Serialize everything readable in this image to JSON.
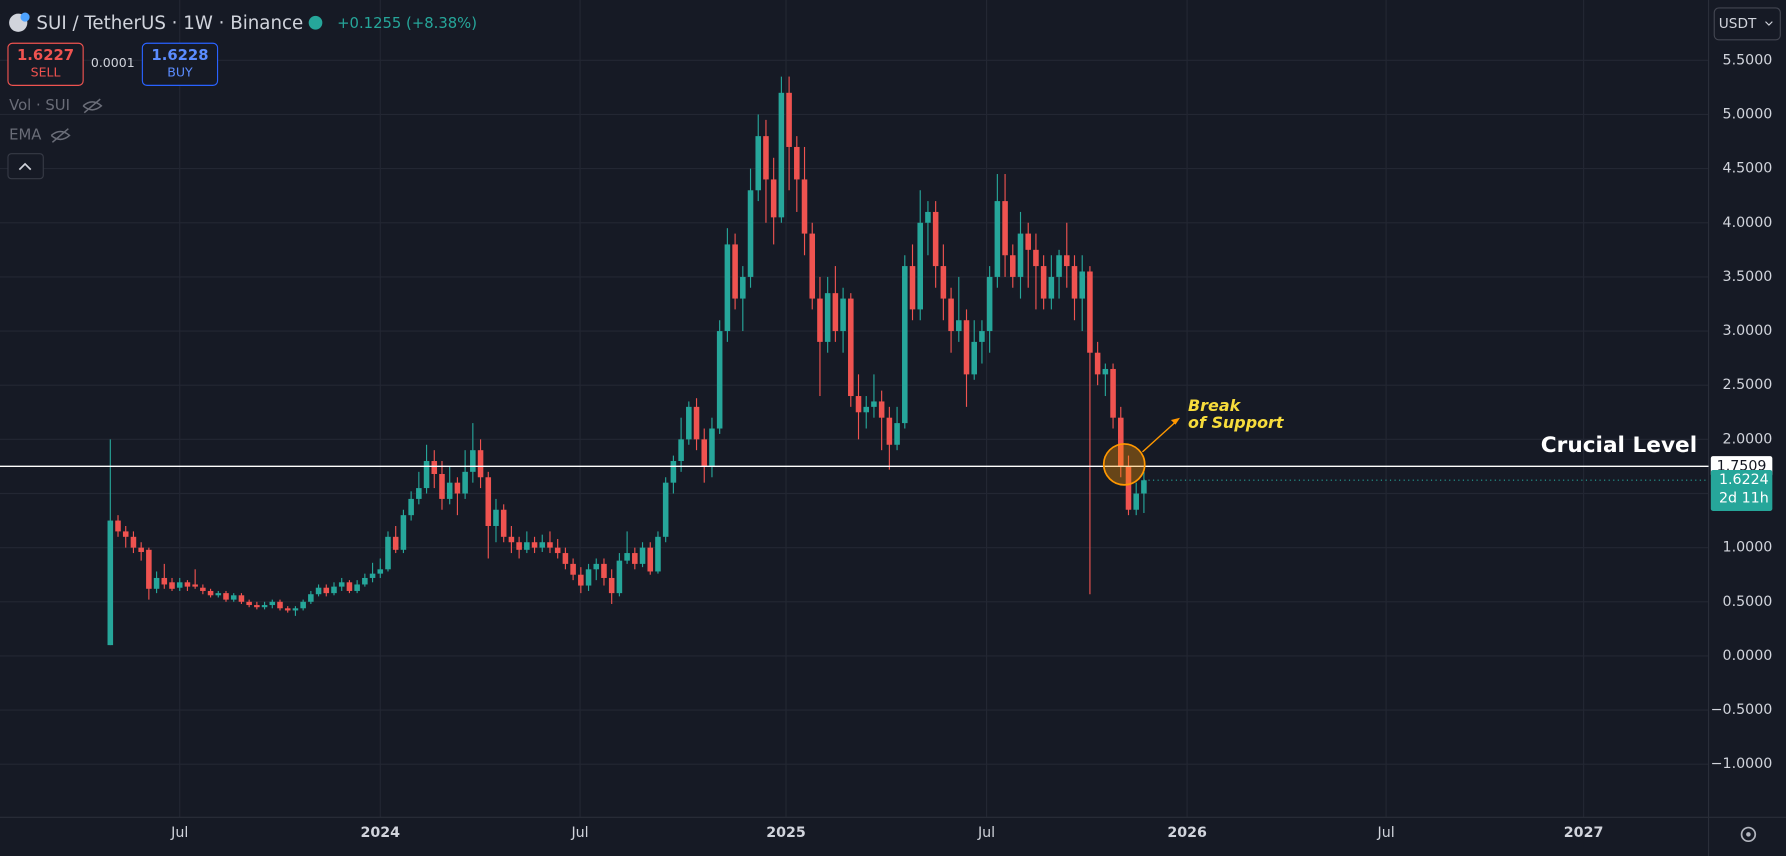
{
  "header": {
    "change": "+0.1255 (+8.38%)",
    "sell_price": "1.6227",
    "sell_label": "SELL",
    "spread": "0.0001",
    "buy_price": "1.6228",
    "buy_label": "BUY",
    "indicators": [
      "Vol · SUI",
      "EMA"
    ],
    "currency": "USDT"
  },
  "chart_data": {
    "type": "candlestick",
    "title": "SUI / TetherUS · 1W · Binance",
    "up_color": "#26a69a",
    "down_color": "#ef5350",
    "grid": true,
    "x": [
      0,
      1,
      2,
      3,
      4,
      5,
      6,
      7,
      8,
      9,
      10,
      11,
      12,
      13,
      14,
      15,
      16,
      17,
      18,
      19,
      20,
      21,
      22,
      23,
      24,
      25,
      26,
      27,
      28,
      29,
      30,
      31,
      32,
      33,
      34,
      35,
      36,
      37,
      38,
      39,
      40,
      41,
      42,
      43,
      44,
      45,
      46,
      47,
      48,
      49,
      50,
      51,
      52,
      53,
      54,
      55,
      56,
      57,
      58,
      59,
      60,
      61,
      62,
      63,
      64,
      65,
      66,
      67,
      68,
      69,
      70,
      71,
      72,
      73,
      74,
      75,
      76,
      77,
      78,
      79,
      80,
      81,
      82,
      83,
      84,
      85,
      86,
      87,
      88,
      89,
      90,
      91,
      92,
      93,
      94,
      95,
      96,
      97,
      98,
      99,
      100,
      101,
      102,
      103,
      104,
      105,
      106,
      107,
      108,
      109,
      110,
      111,
      112,
      113,
      114,
      115,
      116,
      117,
      118,
      119,
      120,
      121,
      122,
      123,
      124,
      125,
      126,
      127,
      128,
      129,
      130,
      131,
      132,
      133,
      134
    ],
    "open": [
      0.1,
      1.25,
      1.15,
      1.1,
      1.0,
      0.98,
      0.62,
      0.72,
      0.68,
      0.63,
      0.68,
      0.66,
      0.63,
      0.6,
      0.56,
      0.58,
      0.52,
      0.56,
      0.5,
      0.47,
      0.45,
      0.47,
      0.5,
      0.44,
      0.42,
      0.44,
      0.5,
      0.57,
      0.63,
      0.58,
      0.64,
      0.68,
      0.6,
      0.66,
      0.72,
      0.76,
      0.8,
      1.1,
      0.98,
      1.3,
      1.45,
      1.55,
      1.8,
      1.68,
      1.45,
      1.6,
      1.5,
      1.7,
      1.9,
      1.65,
      1.2,
      1.35,
      1.1,
      1.05,
      0.98,
      1.05,
      1.0,
      1.05,
      1.0,
      0.95,
      0.85,
      0.75,
      0.65,
      0.8,
      0.85,
      0.72,
      0.58,
      0.88,
      0.95,
      0.85,
      1.0,
      0.78,
      1.1,
      1.6,
      1.8,
      2.0,
      2.3,
      2.0,
      1.75,
      2.1,
      3.0,
      3.8,
      3.3,
      3.5,
      4.3,
      4.8,
      4.4,
      4.05,
      5.2,
      4.7,
      4.4,
      3.9,
      3.3,
      2.9,
      3.35,
      3.0,
      3.3,
      2.4,
      2.25,
      2.3,
      2.35,
      2.2,
      1.95,
      2.15,
      3.6,
      3.2,
      4.0,
      4.1,
      3.6,
      3.3,
      3.0,
      3.1,
      2.6,
      2.9,
      3.0,
      3.5,
      4.2,
      3.7,
      3.5,
      3.9,
      3.75,
      3.6,
      3.3,
      3.5,
      3.7,
      3.6,
      3.3,
      3.55,
      2.8,
      2.6,
      2.65,
      2.2,
      1.75,
      1.35,
      1.5
    ],
    "high": [
      2.0,
      1.3,
      1.2,
      1.15,
      1.05,
      1.0,
      0.78,
      0.85,
      0.72,
      0.72,
      0.7,
      0.8,
      0.66,
      0.62,
      0.6,
      0.6,
      0.58,
      0.58,
      0.52,
      0.5,
      0.5,
      0.52,
      0.52,
      0.46,
      0.46,
      0.52,
      0.6,
      0.66,
      0.66,
      0.68,
      0.72,
      0.7,
      0.7,
      0.76,
      0.86,
      0.9,
      1.15,
      1.2,
      1.35,
      1.52,
      1.7,
      1.95,
      1.9,
      1.8,
      1.75,
      1.65,
      1.9,
      2.15,
      2.0,
      1.7,
      1.45,
      1.4,
      1.2,
      1.1,
      1.15,
      1.1,
      1.12,
      1.15,
      1.08,
      1.0,
      0.9,
      0.82,
      0.85,
      0.9,
      0.9,
      0.8,
      0.95,
      1.15,
      1.0,
      1.05,
      1.05,
      1.15,
      1.65,
      1.85,
      2.2,
      2.35,
      2.38,
      2.1,
      2.2,
      3.1,
      3.95,
      3.9,
      3.6,
      4.5,
      5.0,
      4.95,
      4.6,
      5.35,
      5.35,
      4.8,
      4.7,
      4.0,
      3.5,
      3.5,
      3.6,
      3.4,
      3.35,
      2.6,
      2.4,
      2.6,
      2.45,
      2.3,
      2.3,
      3.7,
      3.8,
      4.3,
      4.2,
      4.2,
      3.8,
      3.4,
      3.5,
      3.2,
      3.1,
      3.1,
      3.6,
      4.45,
      4.45,
      3.8,
      4.1,
      4.0,
      3.9,
      3.7,
      3.7,
      3.75,
      4.0,
      3.7,
      3.7,
      3.6,
      2.9,
      2.7,
      2.7,
      2.3,
      1.85,
      1.6,
      1.7
    ],
    "low": [
      0.1,
      1.1,
      1.0,
      0.95,
      0.88,
      0.52,
      0.58,
      0.62,
      0.6,
      0.6,
      0.6,
      0.62,
      0.57,
      0.54,
      0.54,
      0.5,
      0.5,
      0.48,
      0.45,
      0.43,
      0.43,
      0.44,
      0.42,
      0.4,
      0.37,
      0.42,
      0.48,
      0.55,
      0.55,
      0.56,
      0.6,
      0.58,
      0.58,
      0.64,
      0.68,
      0.72,
      0.78,
      0.95,
      0.95,
      1.25,
      1.4,
      1.5,
      1.55,
      1.35,
      1.4,
      1.3,
      1.45,
      1.6,
      1.55,
      0.9,
      1.05,
      1.05,
      0.95,
      0.9,
      0.95,
      0.95,
      0.96,
      0.95,
      0.9,
      0.8,
      0.7,
      0.58,
      0.6,
      0.7,
      0.65,
      0.48,
      0.55,
      0.85,
      0.8,
      0.82,
      0.75,
      0.76,
      1.05,
      1.5,
      1.7,
      1.95,
      1.9,
      1.6,
      1.65,
      2.05,
      2.9,
      3.2,
      3.0,
      3.4,
      4.2,
      4.0,
      3.8,
      4.0,
      4.3,
      4.1,
      3.7,
      3.2,
      2.4,
      2.8,
      2.9,
      2.8,
      2.3,
      2.0,
      2.1,
      2.2,
      1.9,
      1.72,
      1.9,
      2.1,
      3.1,
      3.1,
      3.7,
      3.4,
      3.1,
      2.8,
      2.9,
      2.3,
      2.55,
      2.7,
      2.8,
      3.4,
      3.5,
      3.4,
      3.3,
      3.4,
      3.2,
      3.2,
      3.2,
      3.3,
      3.4,
      3.1,
      3.0,
      0.57,
      2.5,
      2.4,
      2.1,
      1.65,
      1.3,
      1.3,
      1.32
    ],
    "close": [
      1.25,
      1.15,
      1.1,
      1.0,
      0.96,
      0.62,
      0.72,
      0.66,
      0.62,
      0.68,
      0.64,
      0.64,
      0.6,
      0.56,
      0.58,
      0.52,
      0.56,
      0.5,
      0.47,
      0.45,
      0.47,
      0.5,
      0.44,
      0.42,
      0.44,
      0.5,
      0.57,
      0.63,
      0.58,
      0.64,
      0.68,
      0.6,
      0.66,
      0.72,
      0.76,
      0.8,
      1.1,
      0.98,
      1.3,
      1.45,
      1.55,
      1.8,
      1.68,
      1.45,
      1.6,
      1.5,
      1.7,
      1.9,
      1.65,
      1.2,
      1.35,
      1.1,
      1.05,
      0.98,
      1.05,
      1.0,
      1.05,
      1.0,
      0.95,
      0.85,
      0.75,
      0.65,
      0.8,
      0.85,
      0.72,
      0.58,
      0.88,
      0.95,
      0.85,
      1.0,
      0.78,
      1.1,
      1.6,
      1.8,
      2.0,
      2.3,
      2.0,
      1.75,
      2.1,
      3.0,
      3.8,
      3.3,
      3.5,
      4.3,
      4.8,
      4.4,
      4.05,
      5.2,
      4.7,
      4.4,
      3.9,
      3.3,
      2.9,
      3.35,
      3.0,
      3.3,
      2.4,
      2.25,
      2.3,
      2.35,
      2.2,
      1.95,
      2.15,
      3.6,
      3.2,
      4.0,
      4.1,
      3.6,
      3.3,
      3.0,
      3.1,
      2.6,
      2.9,
      3.0,
      3.5,
      4.2,
      3.7,
      3.5,
      3.9,
      3.75,
      3.6,
      3.3,
      3.5,
      3.7,
      3.6,
      3.3,
      3.55,
      2.8,
      2.6,
      2.65,
      2.2,
      1.75,
      1.35,
      1.5,
      1.6224
    ],
    "xlim": [
      -14.3,
      207.2
    ],
    "xticks": [
      {
        "value": 9.0,
        "label": "Jul"
      },
      {
        "value": 35.0,
        "label": "2024"
      },
      {
        "value": 60.9,
        "label": "Jul"
      },
      {
        "value": 87.6,
        "label": "2025"
      },
      {
        "value": 113.6,
        "label": "Jul"
      },
      {
        "value": 139.6,
        "label": "2026"
      },
      {
        "value": 165.4,
        "label": "Jul"
      },
      {
        "value": 191.0,
        "label": "2027"
      }
    ],
    "ylim": [
      -1.49,
      6.057
    ],
    "yticks": [
      {
        "value": 5.5,
        "label": "5.5000"
      },
      {
        "value": 5.0,
        "label": "5.0000"
      },
      {
        "value": 4.5,
        "label": "4.5000"
      },
      {
        "value": 4.0,
        "label": "4.0000"
      },
      {
        "value": 3.5,
        "label": "3.5000"
      },
      {
        "value": 3.0,
        "label": "3.0000"
      },
      {
        "value": 2.5,
        "label": "2.5000"
      },
      {
        "value": 2.0,
        "label": "2.0000"
      },
      {
        "value": 1.5,
        "label": "1.5000"
      },
      {
        "value": 1.0,
        "label": "1.0000"
      },
      {
        "value": 0.5,
        "label": "0.5000"
      },
      {
        "value": 0.0,
        "label": "0.0000"
      },
      {
        "value": -0.5,
        "label": "−0.5000"
      },
      {
        "value": -1.0,
        "label": "−1.0000"
      }
    ],
    "level": {
      "value": 1.7509,
      "label": "Crucial Level"
    },
    "last_price": 1.6224,
    "countdown": "2d 11h",
    "annotation": [
      "Break",
      "of Support"
    ]
  }
}
